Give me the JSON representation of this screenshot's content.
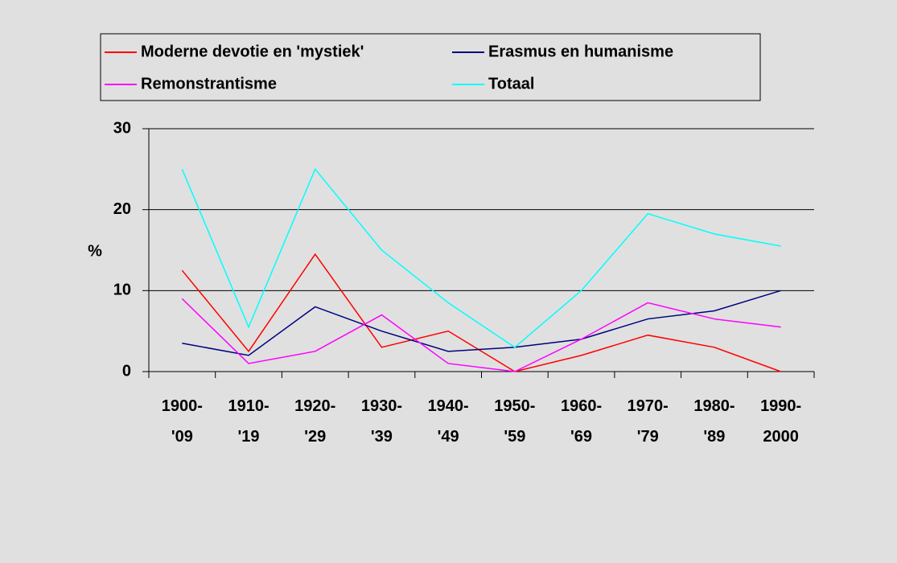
{
  "chart_data": {
    "type": "line",
    "y_label": "%",
    "categories": [
      "1900-\n'09",
      "1910-\n'19",
      "1920-\n'29",
      "1930-\n'39",
      "1940-\n'49",
      "1950-\n'59",
      "1960-\n'69",
      "1970-\n'79",
      "1980-\n'89",
      "1990-\n2000"
    ],
    "series": [
      {
        "name": "Moderne devotie en 'mystiek'",
        "color": "#ff0000",
        "values": [
          12.5,
          2.5,
          14.5,
          3,
          5,
          0,
          2,
          4.5,
          3,
          0
        ]
      },
      {
        "name": "Erasmus en humanisme",
        "color": "#000080",
        "values": [
          3.5,
          2,
          8,
          5,
          2.5,
          3,
          4,
          6.5,
          7.5,
          10
        ]
      },
      {
        "name": "Remonstrantisme",
        "color": "#ff00ff",
        "values": [
          9,
          1,
          2.5,
          7,
          1,
          0,
          4,
          8.5,
          6.5,
          5.5
        ]
      },
      {
        "name": "Totaal",
        "color": "#00ffff",
        "values": [
          25,
          5.5,
          25,
          15,
          8.5,
          3,
          10,
          19.5,
          17,
          15.5
        ]
      }
    ],
    "ylim": [
      0,
      30
    ],
    "yticks": [
      0,
      10,
      20,
      30
    ],
    "grid": true,
    "legend": "top"
  }
}
